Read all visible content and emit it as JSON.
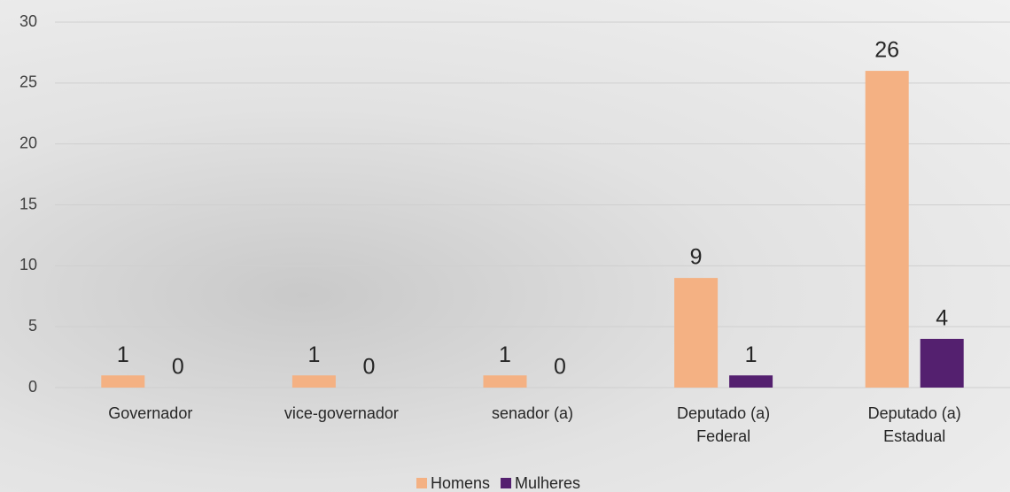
{
  "chart_data": {
    "type": "bar",
    "categories": [
      "Governador",
      "vice-governador",
      "senador (a)",
      "Deputado (a)\nFederal",
      "Deputado (a)\nEstadual"
    ],
    "series": [
      {
        "name": "Homens",
        "color": "#f4b183",
        "values": [
          1,
          1,
          1,
          9,
          26
        ]
      },
      {
        "name": "Mulheres",
        "color": "#54206f",
        "values": [
          0,
          0,
          0,
          1,
          4
        ]
      }
    ],
    "ylim": [
      0,
      30
    ],
    "yticks": [
      0,
      5,
      10,
      15,
      20,
      25,
      30
    ],
    "grid": true,
    "legend": "bottom"
  }
}
